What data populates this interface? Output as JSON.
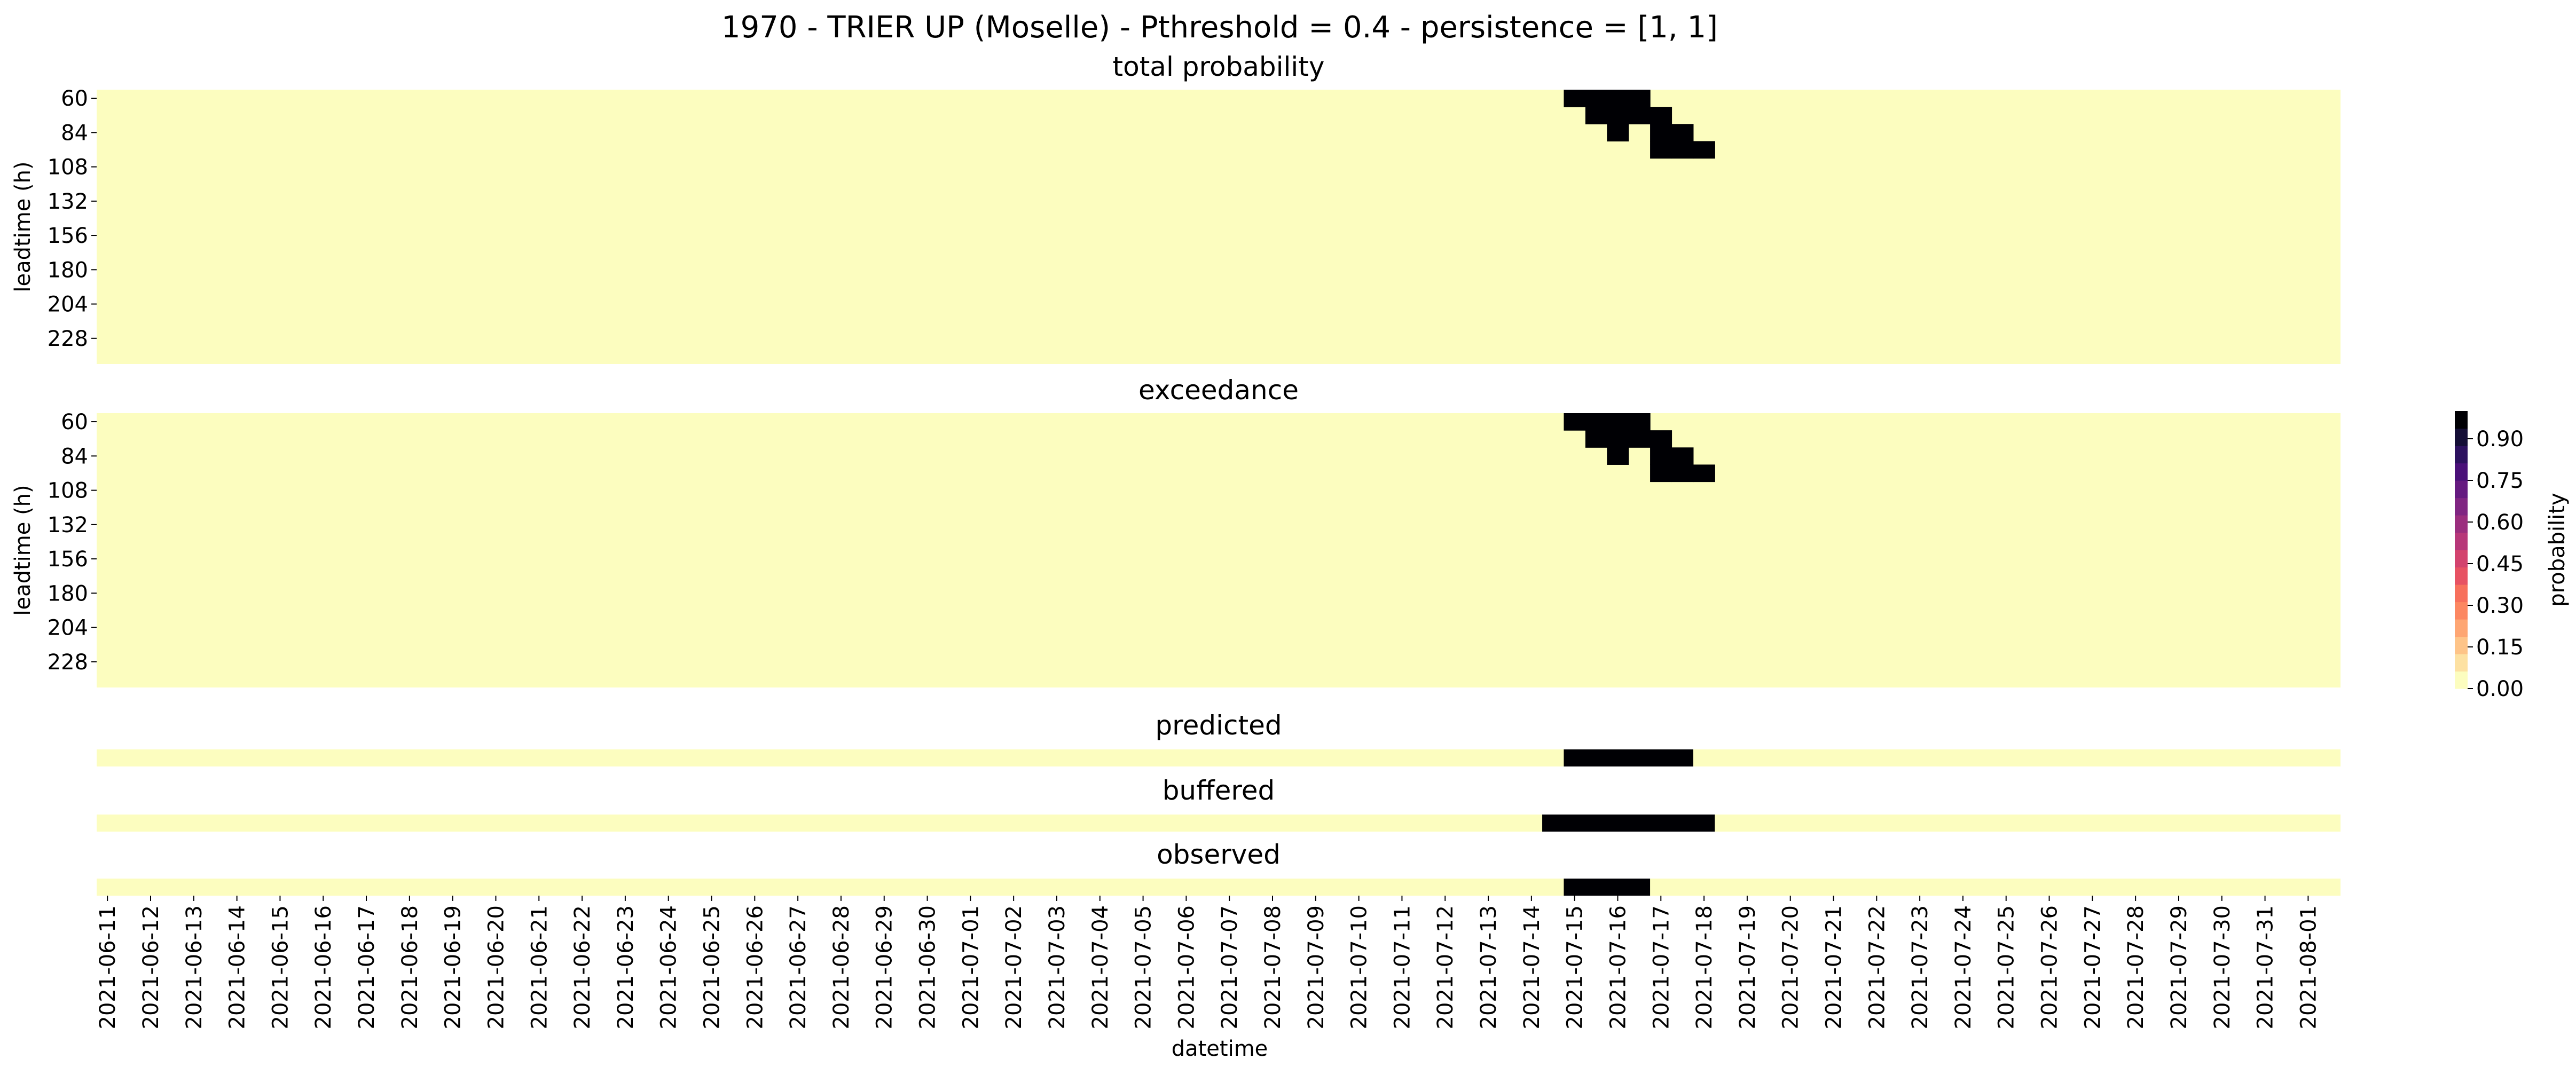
{
  "chart_data": {
    "type": "heatmap",
    "title": "1970 - TRIER UP (Moselle) - Pthreshold = 0.4 - persistence = [1, 1]",
    "xlabel": "datetime",
    "x_tick_labels": [
      "2021-06-11",
      "2021-06-12",
      "2021-06-13",
      "2021-06-14",
      "2021-06-15",
      "2021-06-16",
      "2021-06-17",
      "2021-06-18",
      "2021-06-19",
      "2021-06-20",
      "2021-06-21",
      "2021-06-22",
      "2021-06-23",
      "2021-06-24",
      "2021-06-25",
      "2021-06-26",
      "2021-06-27",
      "2021-06-28",
      "2021-06-29",
      "2021-06-30",
      "2021-07-01",
      "2021-07-02",
      "2021-07-03",
      "2021-07-04",
      "2021-07-05",
      "2021-07-06",
      "2021-07-07",
      "2021-07-08",
      "2021-07-09",
      "2021-07-10",
      "2021-07-11",
      "2021-07-12",
      "2021-07-13",
      "2021-07-14",
      "2021-07-15",
      "2021-07-16",
      "2021-07-17",
      "2021-07-18",
      "2021-07-19",
      "2021-07-20",
      "2021-07-21",
      "2021-07-22",
      "2021-07-23",
      "2021-07-24",
      "2021-07-25",
      "2021-07-26",
      "2021-07-27",
      "2021-07-28",
      "2021-07-29",
      "2021-07-30",
      "2021-07-31",
      "2021-08-01"
    ],
    "x_start": "2021-06-11 00:00",
    "x_end": "2021-08-01 12:00",
    "time_step_hours": 12,
    "leadtimes_h": [
      60,
      72,
      84,
      96,
      108,
      120,
      132,
      144,
      156,
      168,
      180,
      192,
      204,
      216,
      228,
      240
    ],
    "ytick_labels": [
      "60",
      "84",
      "108",
      "132",
      "156",
      "180",
      "204",
      "228"
    ],
    "colorbar": {
      "label": "probability",
      "range": [
        0,
        1
      ],
      "ticks": [
        "0.00",
        "0.15",
        "0.30",
        "0.45",
        "0.60",
        "0.75",
        "0.90"
      ],
      "colors": [
        "#fcfdbf",
        "#fde1a2",
        "#fec488",
        "#fea673",
        "#fc8761",
        "#f7705c",
        "#e75263",
        "#d3436e",
        "#b73779",
        "#9b2e7e",
        "#802582",
        "#651a80",
        "#4a1079",
        "#2c115f",
        "#140e36",
        "#000004"
      ]
    },
    "panels": [
      {
        "title": "total probability",
        "ylabel": "leadtime (h)",
        "default_value": 0,
        "cells": [
          {
            "date": "2021-07-15 00:00",
            "leadtimes_h": [
              60
            ]
          },
          {
            "date": "2021-07-15 12:00",
            "leadtimes_h": [
              60,
              72
            ]
          },
          {
            "date": "2021-07-16 00:00",
            "leadtimes_h": [
              60,
              72,
              84
            ]
          },
          {
            "date": "2021-07-16 12:00",
            "leadtimes_h": [
              60,
              72
            ]
          },
          {
            "date": "2021-07-17 00:00",
            "leadtimes_h": [
              72,
              84,
              96
            ]
          },
          {
            "date": "2021-07-17 12:00",
            "leadtimes_h": [
              84,
              96
            ]
          },
          {
            "date": "2021-07-18 00:00",
            "leadtimes_h": [
              96
            ]
          }
        ],
        "cell_value": 1
      },
      {
        "title": "exceedance",
        "ylabel": "leadtime (h)",
        "default_value": 0,
        "cells": [
          {
            "date": "2021-07-15 00:00",
            "leadtimes_h": [
              60
            ]
          },
          {
            "date": "2021-07-15 12:00",
            "leadtimes_h": [
              60,
              72
            ]
          },
          {
            "date": "2021-07-16 00:00",
            "leadtimes_h": [
              60,
              72,
              84
            ]
          },
          {
            "date": "2021-07-16 12:00",
            "leadtimes_h": [
              60,
              72
            ]
          },
          {
            "date": "2021-07-17 00:00",
            "leadtimes_h": [
              72,
              84,
              96
            ]
          },
          {
            "date": "2021-07-17 12:00",
            "leadtimes_h": [
              84,
              96
            ]
          },
          {
            "date": "2021-07-18 00:00",
            "leadtimes_h": [
              96
            ]
          }
        ],
        "cell_value": 1
      },
      {
        "title": "predicted",
        "default_value": 0,
        "active_ranges": [
          {
            "start": "2021-07-15 00:00",
            "end": "2021-07-17 12:00"
          }
        ],
        "cell_value": 1
      },
      {
        "title": "buffered",
        "default_value": 0,
        "active_ranges": [
          {
            "start": "2021-07-14 12:00",
            "end": "2021-07-18 00:00"
          }
        ],
        "cell_value": 1
      },
      {
        "title": "observed",
        "default_value": 0,
        "active_ranges": [
          {
            "start": "2021-07-15 00:00",
            "end": "2021-07-16 12:00"
          }
        ],
        "cell_value": 1
      }
    ]
  }
}
